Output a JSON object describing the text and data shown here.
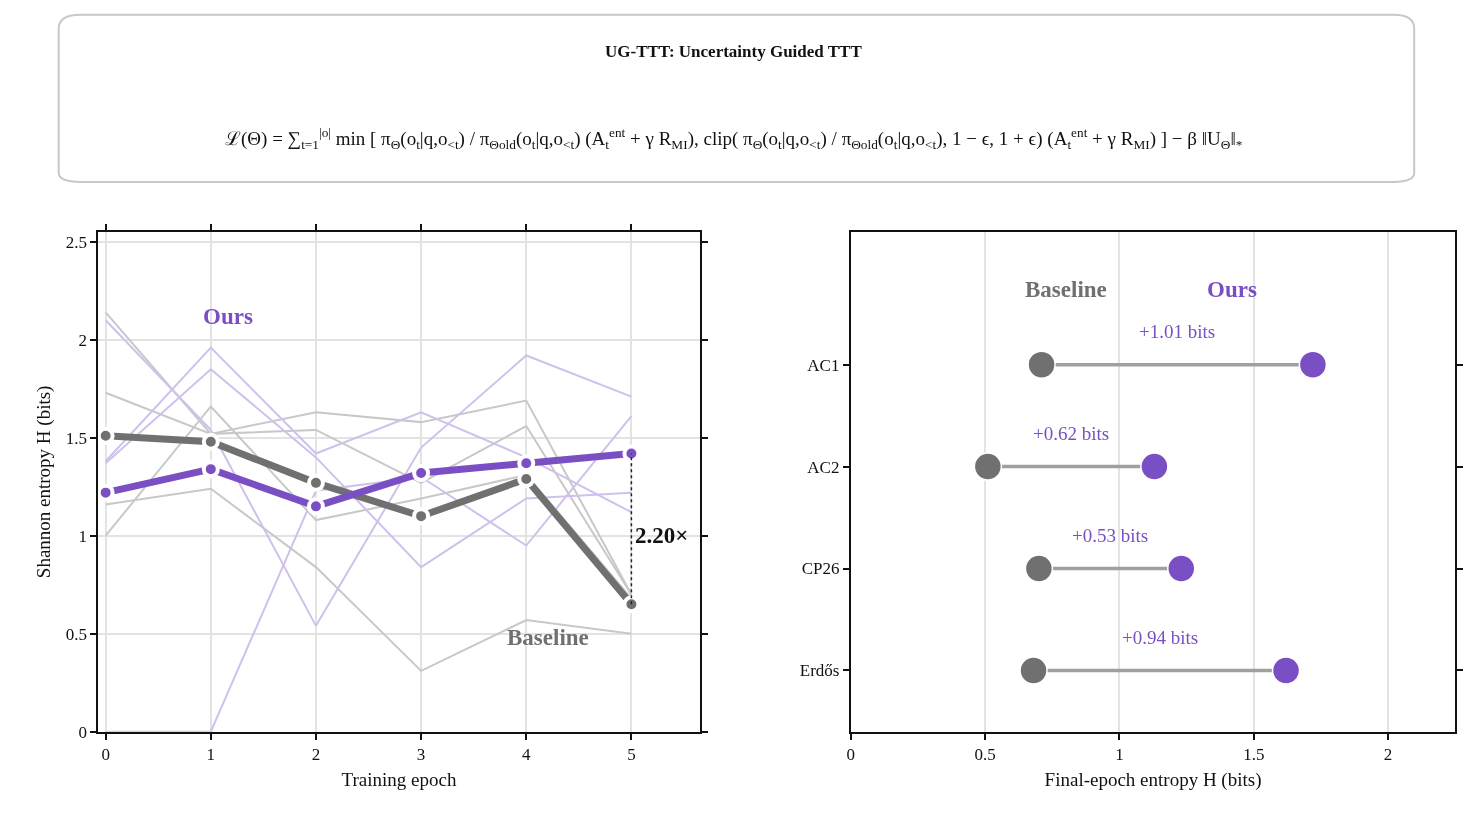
{
  "chart_data": [
    {
      "type": "other",
      "title": "UG-TTT: Uncertainty Guided TTT",
      "annotations": [
        "ℒ(Θ) = ∑$_{t=1}$$^{|o|}$ min [ π$_{Θ}$(o$_{t}$|q,o$_{<t}$) / π$_{Θold}$(o$_{t}$|q,o$_{<t}$) (A$_{t}$$^{ent}$ + γ R$_{MI}$), clip( π$_{Θ}$(o$_{t}$|q,o$_{<t}$) / π$_{Θold}$(o$_{t}$|q,o$_{<t}$), 1 − ϵ, 1 + ϵ) (A$_{t}$$^{ent}$ + γ R$_{MI}$) ] − β ‖U$_{Θ}$‖$_{*}$"
      ]
    },
    {
      "type": "line",
      "xlabel": "Training epoch",
      "ylabel": "Shannon entropy H (bits)",
      "x": [
        0,
        1,
        2,
        3,
        4,
        5
      ],
      "xlim": [
        -0.07,
        5.65
      ],
      "ylim": [
        0,
        2.55
      ],
      "xticks": [
        0,
        1,
        2,
        3,
        4,
        5
      ],
      "yticks": [
        0,
        0.5,
        1,
        1.5,
        2,
        2.5
      ],
      "grid": true,
      "legend": false,
      "line_style": "solid",
      "series": [
        {
          "color": "#c8c8c8",
          "marker": "none",
          "values": [
            2.14,
            1.52,
            1.54,
            1.27,
            1.56,
            0.7
          ]
        },
        {
          "color": "#c8c8c8",
          "marker": "none",
          "values": [
            1.73,
            1.52,
            1.63,
            1.58,
            1.69,
            0.7
          ]
        },
        {
          "color": "#c8c8c8",
          "marker": "none",
          "values": [
            1.0,
            1.66,
            1.08,
            1.19,
            1.31,
            0.68
          ]
        },
        {
          "color": "#c8c8c8",
          "marker": "none",
          "values": [
            1.16,
            1.24,
            0.84,
            0.31,
            0.57,
            0.5
          ]
        },
        {
          "color": "#cfc0ec",
          "marker": "none",
          "values": [
            2.1,
            1.54,
            0.54,
            1.45,
            1.92,
            1.71
          ]
        },
        {
          "color": "#cfc0ec",
          "marker": "none",
          "values": [
            1.38,
            1.96,
            1.42,
            1.63,
            1.4,
            1.12
          ]
        },
        {
          "color": "#cfc0ec",
          "marker": "none",
          "values": [
            1.37,
            1.85,
            1.4,
            0.84,
            1.19,
            1.22
          ]
        },
        {
          "color": "#cfc0ec",
          "marker": "none",
          "values": [
            0,
            0,
            1.23,
            1.3,
            0.95,
            1.61
          ]
        },
        {
          "name": "Baseline",
          "color": "#707070",
          "marker": "circle",
          "values": [
            1.51,
            1.48,
            1.27,
            1.1,
            1.29,
            0.65
          ]
        },
        {
          "name": "Ours",
          "color": "#7b4fc4",
          "marker": "circle",
          "values": [
            1.22,
            1.34,
            1.15,
            1.32,
            1.37,
            1.42
          ]
        },
        {
          "color": "#222222",
          "marker": "none",
          "line_style": "dotted",
          "x": [
            5,
            5
          ],
          "values": [
            0.65,
            1.42
          ]
        }
      ],
      "annotations": [
        {
          "text": "2.20×",
          "x": 5,
          "y": 1.0
        }
      ]
    },
    {
      "type": "scatter",
      "orientation": "horizontal",
      "xlabel": "Final-epoch entropy H (bits)",
      "categories": [
        "AC1",
        "AC2",
        "CP26",
        "Erdős"
      ],
      "xlim": [
        0,
        2.25
      ],
      "xticks": [
        0,
        0.5,
        1,
        1.5,
        2
      ],
      "grid": "x",
      "legend": false,
      "marker": "circle",
      "series": [
        {
          "name": "Baseline",
          "color": "#707070",
          "values": [
            0.71,
            0.51,
            0.7,
            0.68
          ]
        },
        {
          "name": "Ours",
          "color": "#7b4fc4",
          "values": [
            1.72,
            1.13,
            1.23,
            1.62
          ]
        }
      ],
      "annotations": [
        "+1.01 bits",
        "+0.62 bits",
        "+0.53 bits",
        "+0.94 bits"
      ]
    }
  ]
}
